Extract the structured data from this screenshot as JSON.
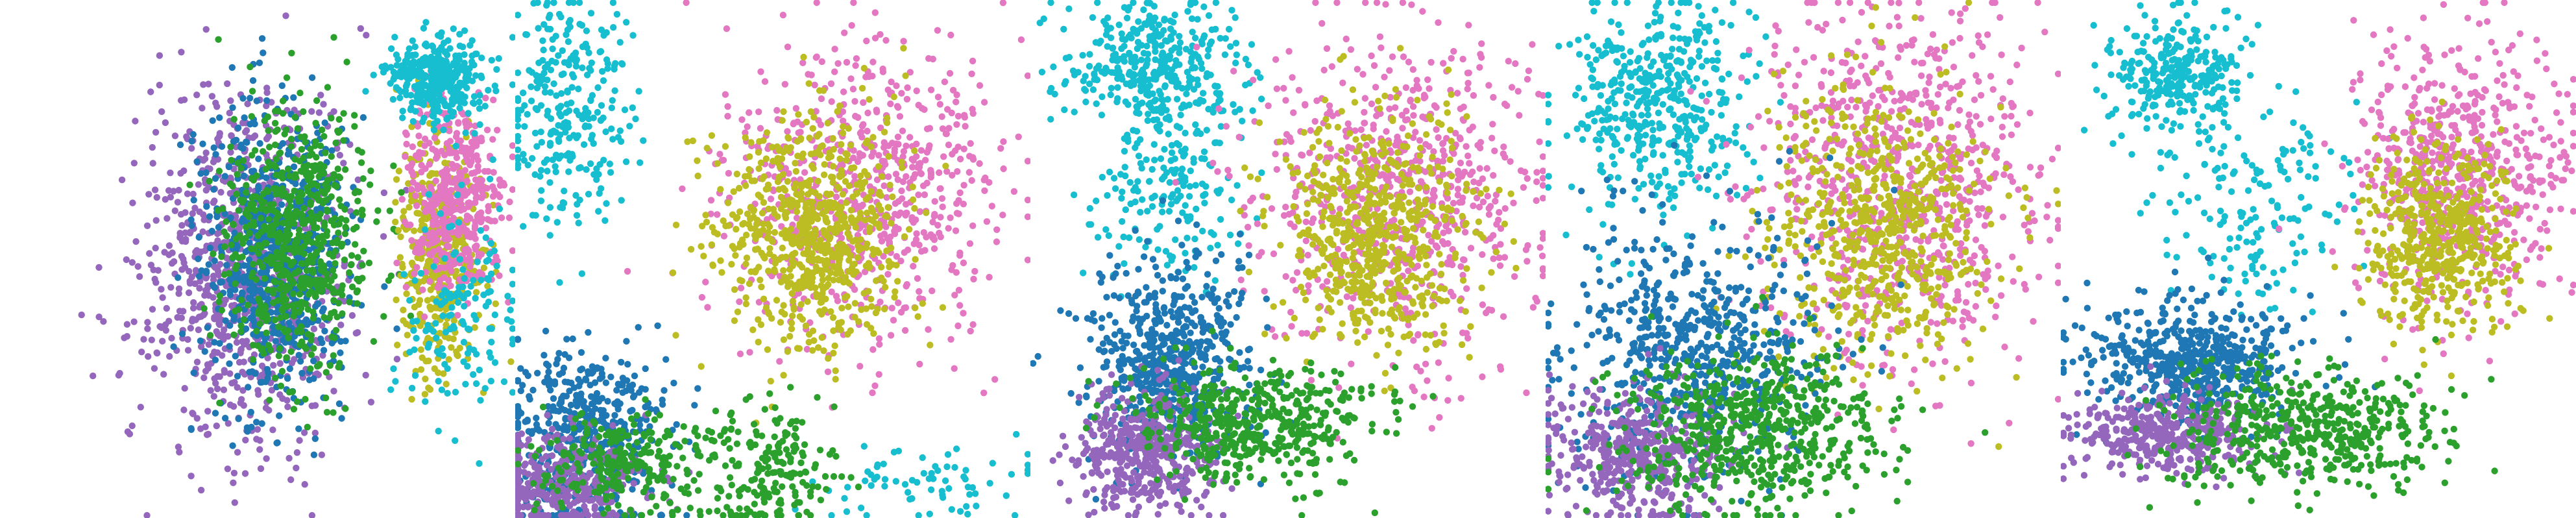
{
  "palette": {
    "blue": "#1f77b4",
    "green": "#2ca02c",
    "purple": "#9467bd",
    "pink": "#e377c2",
    "olive": "#bcbd22",
    "cyan": "#17becf"
  },
  "chart_data": [
    {
      "type": "scatter",
      "title": "",
      "xlabel": "",
      "ylabel": "",
      "grid": false,
      "legend": "none",
      "axes_visible": false,
      "xlim": [
        0,
        100
      ],
      "ylim": [
        0,
        100
      ],
      "series": [
        {
          "color": "purple",
          "count": 900,
          "clusters": [
            {
              "cx": 48,
              "cy": 48,
              "sx": 10,
              "sy": 16,
              "w": 1
            }
          ]
        },
        {
          "color": "blue",
          "count": 700,
          "clusters": [
            {
              "cx": 54,
              "cy": 50,
              "sx": 7,
              "sy": 15,
              "w": 1
            }
          ]
        },
        {
          "color": "green",
          "count": 650,
          "clusters": [
            {
              "cx": 58,
              "cy": 55,
              "sx": 7,
              "sy": 13,
              "w": 1
            }
          ]
        },
        {
          "color": "olive",
          "count": 450,
          "clusters": [
            {
              "cx": 86,
              "cy": 52,
              "sx": 4,
              "sy": 12,
              "w": 1
            }
          ]
        },
        {
          "color": "pink",
          "count": 450,
          "clusters": [
            {
              "cx": 89,
              "cy": 62,
              "sx": 5,
              "sy": 10,
              "w": 1
            }
          ]
        },
        {
          "color": "cyan",
          "count": 500,
          "clusters": [
            {
              "cx": 85,
              "cy": 85,
              "sx": 5,
              "sy": 4,
              "w": 0.7
            },
            {
              "cx": 90,
              "cy": 40,
              "sx": 6,
              "sy": 10,
              "w": 0.3
            }
          ]
        }
      ]
    },
    {
      "type": "scatter",
      "title": "",
      "xlabel": "",
      "ylabel": "",
      "grid": false,
      "legend": "none",
      "axes_visible": false,
      "xlim": [
        0,
        100
      ],
      "ylim": [
        0,
        100
      ],
      "series": [
        {
          "color": "cyan",
          "count": 350,
          "clusters": [
            {
              "cx": 10,
              "cy": 80,
              "sx": 6,
              "sy": 12,
              "w": 0.8
            },
            {
              "cx": 80,
              "cy": 6,
              "sx": 12,
              "sy": 4,
              "w": 0.2
            }
          ]
        },
        {
          "color": "pink",
          "count": 700,
          "clusters": [
            {
              "cx": 68,
              "cy": 62,
              "sx": 14,
              "sy": 15,
              "w": 1
            }
          ]
        },
        {
          "color": "olive",
          "count": 700,
          "clusters": [
            {
              "cx": 57,
              "cy": 55,
              "sx": 9,
              "sy": 11,
              "w": 1
            }
          ]
        },
        {
          "color": "blue",
          "count": 500,
          "clusters": [
            {
              "cx": 13,
              "cy": 15,
              "sx": 8,
              "sy": 9,
              "w": 1
            }
          ]
        },
        {
          "color": "purple",
          "count": 350,
          "clusters": [
            {
              "cx": 8,
              "cy": 6,
              "sx": 8,
              "sy": 5,
              "w": 1
            }
          ]
        },
        {
          "color": "green",
          "count": 450,
          "clusters": [
            {
              "cx": 21,
              "cy": 10,
              "sx": 9,
              "sy": 5,
              "w": 0.6
            },
            {
              "cx": 50,
              "cy": 9,
              "sx": 6,
              "sy": 6,
              "w": 0.4
            }
          ]
        }
      ]
    },
    {
      "type": "scatter",
      "title": "",
      "xlabel": "",
      "ylabel": "",
      "grid": false,
      "legend": "none",
      "axes_visible": false,
      "xlim": [
        0,
        100
      ],
      "ylim": [
        0,
        100
      ],
      "series": [
        {
          "color": "cyan",
          "count": 550,
          "clusters": [
            {
              "cx": 24,
              "cy": 88,
              "sx": 9,
              "sy": 6,
              "w": 0.6
            },
            {
              "cx": 27,
              "cy": 66,
              "sx": 8,
              "sy": 10,
              "w": 0.4
            }
          ]
        },
        {
          "color": "pink",
          "count": 700,
          "clusters": [
            {
              "cx": 72,
              "cy": 62,
              "sx": 14,
              "sy": 16,
              "w": 1
            }
          ]
        },
        {
          "color": "olive",
          "count": 650,
          "clusters": [
            {
              "cx": 67,
              "cy": 55,
              "sx": 9,
              "sy": 12,
              "w": 1
            }
          ]
        },
        {
          "color": "blue",
          "count": 600,
          "clusters": [
            {
              "cx": 27,
              "cy": 30,
              "sx": 8,
              "sy": 10,
              "w": 1
            }
          ]
        },
        {
          "color": "purple",
          "count": 450,
          "clusters": [
            {
              "cx": 22,
              "cy": 12,
              "sx": 7,
              "sy": 6,
              "w": 1
            }
          ]
        },
        {
          "color": "green",
          "count": 500,
          "clusters": [
            {
              "cx": 44,
              "cy": 18,
              "sx": 12,
              "sy": 6,
              "w": 1
            }
          ]
        }
      ]
    },
    {
      "type": "scatter",
      "title": "",
      "xlabel": "",
      "ylabel": "",
      "grid": false,
      "legend": "none",
      "axes_visible": false,
      "xlim": [
        0,
        100
      ],
      "ylim": [
        0,
        100
      ],
      "series": [
        {
          "color": "cyan",
          "count": 450,
          "clusters": [
            {
              "cx": 22,
              "cy": 80,
              "sx": 9,
              "sy": 11,
              "w": 1
            }
          ]
        },
        {
          "color": "pink",
          "count": 800,
          "clusters": [
            {
              "cx": 69,
              "cy": 65,
              "sx": 14,
              "sy": 17,
              "w": 1
            }
          ]
        },
        {
          "color": "olive",
          "count": 650,
          "clusters": [
            {
              "cx": 66,
              "cy": 56,
              "sx": 11,
              "sy": 13,
              "w": 1
            }
          ]
        },
        {
          "color": "blue",
          "count": 650,
          "clusters": [
            {
              "cx": 29,
              "cy": 32,
              "sx": 13,
              "sy": 13,
              "w": 1
            }
          ]
        },
        {
          "color": "purple",
          "count": 450,
          "clusters": [
            {
              "cx": 17,
              "cy": 12,
              "sx": 9,
              "sy": 7,
              "w": 1
            }
          ]
        },
        {
          "color": "green",
          "count": 600,
          "clusters": [
            {
              "cx": 40,
              "cy": 17,
              "sx": 13,
              "sy": 8,
              "w": 1
            }
          ]
        }
      ]
    },
    {
      "type": "scatter",
      "title": "",
      "xlabel": "",
      "ylabel": "",
      "grid": false,
      "legend": "none",
      "axes_visible": false,
      "xlim": [
        0,
        100
      ],
      "ylim": [
        0,
        100
      ],
      "series": [
        {
          "color": "cyan",
          "count": 450,
          "clusters": [
            {
              "cx": 22,
              "cy": 86,
              "sx": 7,
              "sy": 6,
              "w": 0.6
            },
            {
              "cx": 38,
              "cy": 62,
              "sx": 10,
              "sy": 10,
              "w": 0.4
            }
          ]
        },
        {
          "color": "pink",
          "count": 650,
          "clusters": [
            {
              "cx": 78,
              "cy": 67,
              "sx": 10,
              "sy": 13,
              "w": 1
            }
          ]
        },
        {
          "color": "olive",
          "count": 500,
          "clusters": [
            {
              "cx": 74,
              "cy": 55,
              "sx": 7,
              "sy": 9,
              "w": 1
            }
          ]
        },
        {
          "color": "blue",
          "count": 550,
          "clusters": [
            {
              "cx": 25,
              "cy": 30,
              "sx": 10,
              "sy": 6,
              "w": 1
            }
          ]
        },
        {
          "color": "purple",
          "count": 400,
          "clusters": [
            {
              "cx": 20,
              "cy": 16,
              "sx": 10,
              "sy": 4,
              "w": 1
            }
          ]
        },
        {
          "color": "green",
          "count": 500,
          "clusters": [
            {
              "cx": 48,
              "cy": 17,
              "sx": 14,
              "sy": 6,
              "w": 1
            }
          ]
        }
      ]
    }
  ]
}
